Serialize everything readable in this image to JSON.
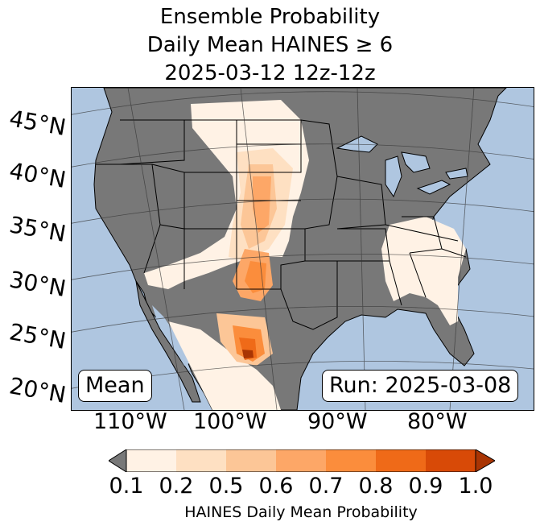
{
  "title": {
    "line1": "Ensemble Probability",
    "line2": "Daily Mean HAINES ≥ 6",
    "line3": "2025-03-12 12z-12z"
  },
  "map": {
    "ocean_color": "#afc6e0",
    "land_color": "#787878",
    "lat_labels": [
      "45°N",
      "40°N",
      "35°N",
      "30°N",
      "25°N",
      "20°N"
    ],
    "lon_labels": [
      "110°W",
      "100°W",
      "90°W",
      "80°W"
    ],
    "mean_label": "Mean",
    "run_label": "Run: 2025-03-08"
  },
  "colorbar": {
    "ticks": [
      "0.1",
      "0.2",
      "0.5",
      "0.6",
      "0.7",
      "0.8",
      "0.9",
      "1.0"
    ],
    "colors": [
      "#fff2e5",
      "#fee0c2",
      "#fcc697",
      "#fda767",
      "#fb8d3c",
      "#ef6a18",
      "#d84a07",
      "#a93504"
    ],
    "under_color": "#787878",
    "label": "HAINES Daily Mean Probability"
  }
}
